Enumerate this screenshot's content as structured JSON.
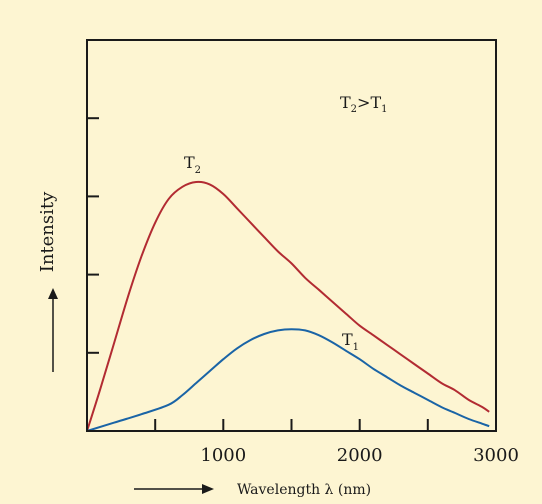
{
  "chart_data": {
    "type": "line",
    "title": "",
    "xlabel": "Wavelength λ (nm)",
    "ylabel": "Intensity",
    "xlim": [
      0,
      3000
    ],
    "x_ticks": [
      500,
      1000,
      1500,
      2000,
      2500,
      3000
    ],
    "x_tick_labels": [
      {
        "value": 1000,
        "label": "1000"
      },
      {
        "value": 2000,
        "label": "2000"
      },
      {
        "value": 3000,
        "label": "3000"
      }
    ],
    "y_tick_count": 4,
    "grid": false,
    "annotation": {
      "main": "T",
      "sub_a": "2",
      "op": ">T",
      "sub_b": "1"
    },
    "series": [
      {
        "label_main": "T",
        "label_sub": "2",
        "color": "#b22b32",
        "x": [
          0,
          100,
          200,
          300,
          400,
          500,
          600,
          700,
          800,
          900,
          1000,
          1100,
          1200,
          1300,
          1400,
          1500,
          1600,
          1700,
          1800,
          1900,
          2000,
          2100,
          2200,
          2300,
          2400,
          2500,
          2600,
          2700,
          2800,
          2900,
          2950
        ],
        "y": [
          0,
          0.18,
          0.37,
          0.56,
          0.73,
          0.87,
          0.97,
          1.02,
          1.04,
          1.03,
          0.99,
          0.93,
          0.87,
          0.81,
          0.75,
          0.7,
          0.64,
          0.59,
          0.54,
          0.49,
          0.44,
          0.4,
          0.36,
          0.32,
          0.28,
          0.24,
          0.2,
          0.17,
          0.13,
          0.1,
          0.08
        ]
      },
      {
        "label_main": "T",
        "label_sub": "1",
        "color": "#1a64a6",
        "x": [
          0,
          200,
          400,
          600,
          700,
          800,
          900,
          1000,
          1100,
          1200,
          1300,
          1400,
          1500,
          1600,
          1700,
          1800,
          1900,
          2000,
          2100,
          2200,
          2300,
          2400,
          2500,
          2600,
          2700,
          2800,
          2900,
          2950
        ],
        "y": [
          0,
          0.035,
          0.07,
          0.11,
          0.15,
          0.2,
          0.25,
          0.3,
          0.345,
          0.38,
          0.405,
          0.42,
          0.425,
          0.42,
          0.4,
          0.37,
          0.335,
          0.3,
          0.26,
          0.225,
          0.19,
          0.16,
          0.13,
          0.1,
          0.075,
          0.05,
          0.03,
          0.02
        ]
      }
    ]
  }
}
